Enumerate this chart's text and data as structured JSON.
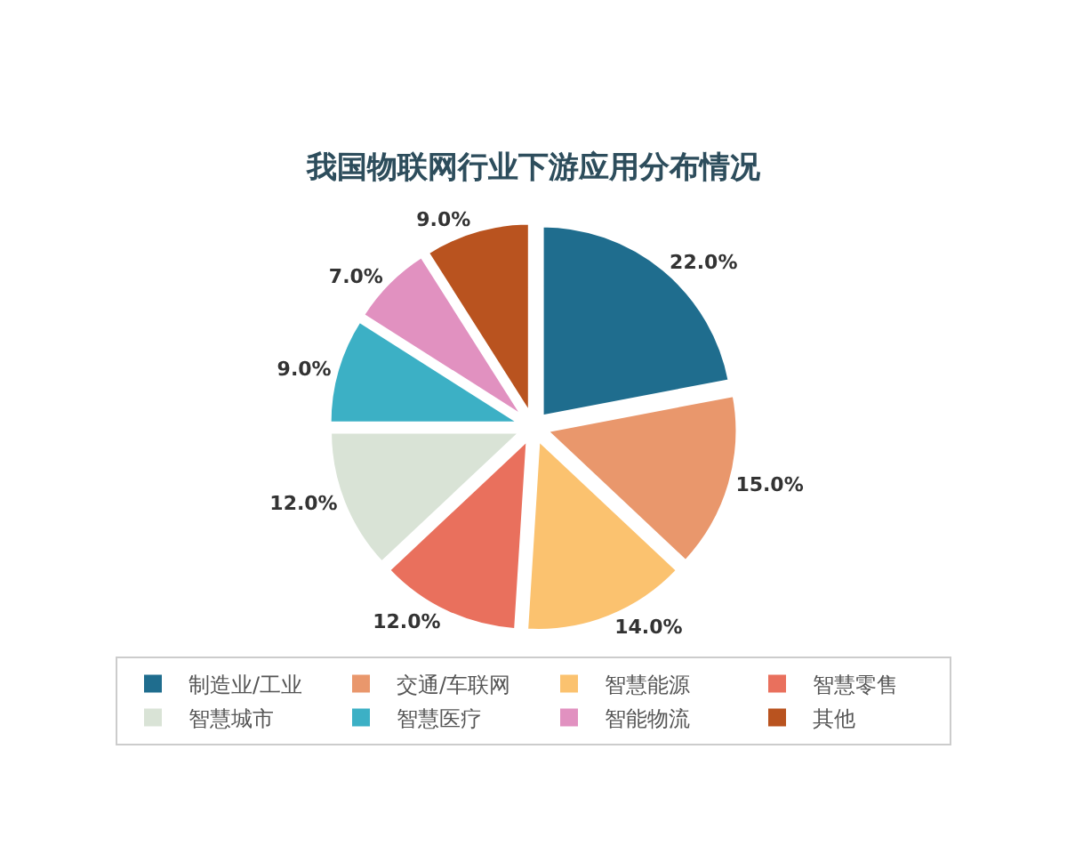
{
  "chart_data": {
    "type": "pie",
    "title": "我国物联网行业下游应用分布情况",
    "categories": [
      "制造业/工业",
      "交通/车联网",
      "智慧能源",
      "智慧零售",
      "智慧城市",
      "智慧医疗",
      "智能物流",
      "其他"
    ],
    "values": [
      22,
      15,
      14,
      12,
      12,
      9,
      7,
      9
    ],
    "colors": [
      "#1f6d8e",
      "#e9976c",
      "#fbc26f",
      "#e9705d",
      "#d9e3d6",
      "#3cb0c5",
      "#e191c0",
      "#b9531f"
    ],
    "value_labels": [
      "22.0%",
      "15.0%",
      "14.0%",
      "12.0%",
      "12.0%",
      "9.0%",
      "7.0%",
      "9.0%"
    ],
    "legend": "bottom"
  }
}
